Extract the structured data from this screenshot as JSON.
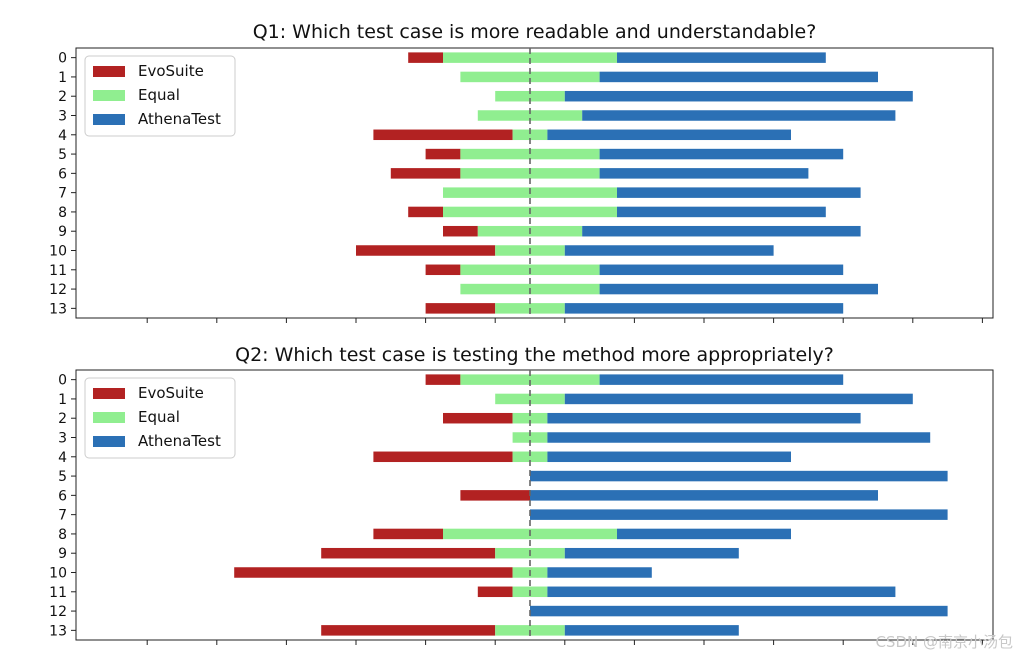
{
  "chart_data": [
    {
      "type": "bar",
      "orientation": "horizontal-diverging-stacked",
      "title": "Q1: Which test case is more readable and understandable?",
      "categories": [
        "0",
        "1",
        "2",
        "3",
        "4",
        "5",
        "6",
        "7",
        "8",
        "9",
        "10",
        "11",
        "12",
        "13"
      ],
      "series": [
        {
          "name": "EvoSuite",
          "color": "#b22222",
          "values": [
            2,
            0,
            0,
            0,
            8,
            2,
            4,
            0,
            2,
            2,
            8,
            2,
            0,
            4
          ]
        },
        {
          "name": "Equal",
          "color": "#90ee90",
          "values": [
            10,
            8,
            4,
            6,
            2,
            8,
            8,
            10,
            10,
            6,
            4,
            8,
            8,
            4
          ]
        },
        {
          "name": "AthenaTest",
          "color": "#2b70b5",
          "values": [
            12,
            16,
            20,
            18,
            14,
            14,
            12,
            14,
            12,
            16,
            12,
            14,
            16,
            16
          ]
        }
      ],
      "legend": "upper-left",
      "grid": false,
      "xlim": [
        -26,
        27
      ],
      "center_line": "dashed at 0"
    },
    {
      "type": "bar",
      "orientation": "horizontal-diverging-stacked",
      "title": "Q2: Which test case is testing the method more appropriately?",
      "categories": [
        "0",
        "1",
        "2",
        "3",
        "4",
        "5",
        "6",
        "7",
        "8",
        "9",
        "10",
        "11",
        "12",
        "13"
      ],
      "series": [
        {
          "name": "EvoSuite",
          "color": "#b22222",
          "values": [
            2,
            0,
            4,
            0,
            8,
            0,
            4,
            0,
            4,
            10,
            16,
            2,
            0,
            10
          ]
        },
        {
          "name": "Equal",
          "color": "#90ee90",
          "values": [
            8,
            4,
            2,
            2,
            2,
            0,
            0,
            0,
            10,
            4,
            2,
            2,
            0,
            4
          ]
        },
        {
          "name": "AthenaTest",
          "color": "#2b70b5",
          "values": [
            14,
            20,
            18,
            22,
            14,
            24,
            20,
            24,
            10,
            10,
            6,
            20,
            24,
            10
          ]
        }
      ],
      "legend": "upper-left",
      "grid": false,
      "xlim": [
        -26,
        27
      ],
      "center_line": "dashed at 0"
    }
  ],
  "watermark": "CSDN @南京小汤包"
}
